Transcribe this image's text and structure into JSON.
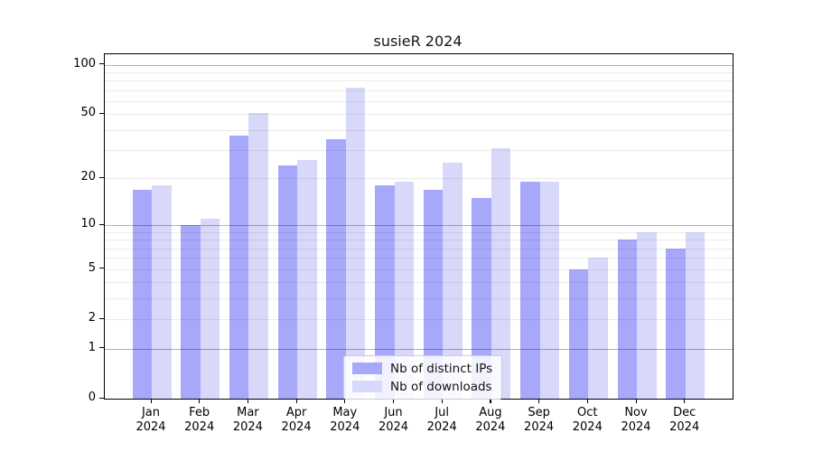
{
  "title": "susieR 2024",
  "chart_data": {
    "type": "bar",
    "title": "susieR 2024",
    "categories": [
      "Jan 2024",
      "Feb 2024",
      "Mar 2024",
      "Apr 2024",
      "May 2024",
      "Jun 2024",
      "Jul 2024",
      "Aug 2024",
      "Sep 2024",
      "Oct 2024",
      "Nov 2024",
      "Dec 2024"
    ],
    "series": [
      {
        "name": "Nb of distinct IPs",
        "color": "#a8a8fa",
        "values": [
          17,
          10,
          37,
          24,
          35,
          18,
          17,
          15,
          19,
          5,
          8,
          7
        ]
      },
      {
        "name": "Nb of downloads",
        "color": "#d8d8fa",
        "values": [
          18,
          11,
          51,
          26,
          73,
          19,
          25,
          31,
          19,
          6,
          9,
          9
        ]
      }
    ],
    "xlabel": "",
    "ylabel": "",
    "yscale": "log1p",
    "ylim": [
      0,
      116
    ],
    "yticks_labeled": [
      0,
      1,
      2,
      5,
      10,
      20,
      50,
      100
    ],
    "ygrid_major": [
      1,
      10,
      100
    ],
    "ygrid_minor": [
      2,
      3,
      4,
      5,
      6,
      7,
      8,
      9,
      20,
      30,
      40,
      50,
      60,
      70,
      80,
      90
    ],
    "grid": true,
    "legend_position": "lower center"
  }
}
